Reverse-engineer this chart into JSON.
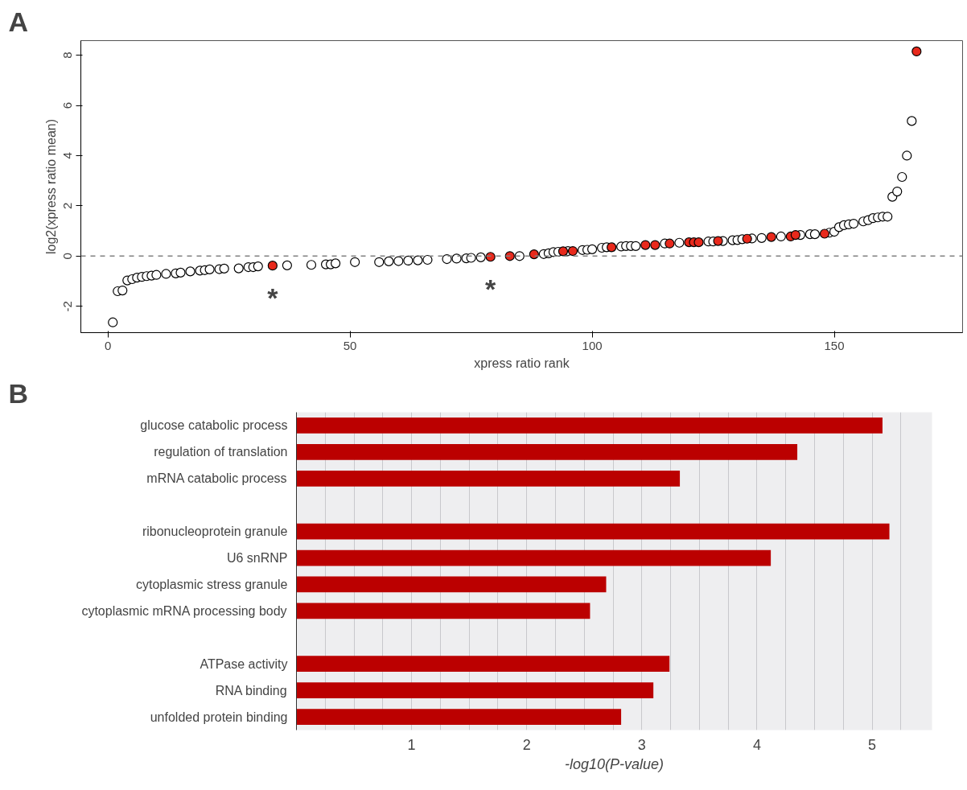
{
  "chart_data": [
    {
      "type": "scatter",
      "title": "A",
      "xlabel": "xpress ratio rank",
      "ylabel": "log2(xpress ratio mean)",
      "xlim": [
        -5.6,
        176.5
      ],
      "ylim": [
        -3.05,
        8.58
      ],
      "xticks": [
        0,
        50,
        100,
        150
      ],
      "yticks": [
        -2,
        0,
        2,
        4,
        6,
        8
      ],
      "grid": false,
      "marker": "circle",
      "series": [
        {
          "color": "#ffffff",
          "x": [
            1,
            2,
            3,
            4,
            5,
            6,
            7,
            8,
            9,
            10,
            12,
            14,
            15,
            17,
            19,
            20,
            21,
            23,
            24,
            27,
            29,
            30,
            31,
            37,
            42,
            45,
            46,
            47,
            51,
            56,
            58,
            60,
            62,
            64,
            66,
            70,
            72,
            74,
            75,
            77,
            85,
            90,
            91,
            92,
            93,
            95,
            98,
            99,
            100,
            102,
            103,
            106,
            107,
            108,
            109,
            115,
            118,
            124,
            125,
            127,
            129,
            130,
            131,
            133,
            135,
            139,
            143,
            145,
            146,
            149,
            150,
            151,
            152,
            153,
            154,
            156,
            157,
            158,
            159,
            160,
            161,
            162,
            163,
            164,
            165,
            166
          ],
          "values": [
            -2.64,
            -1.4,
            -1.37,
            -0.97,
            -0.92,
            -0.86,
            -0.83,
            -0.8,
            -0.78,
            -0.75,
            -0.71,
            -0.69,
            -0.66,
            -0.61,
            -0.58,
            -0.56,
            -0.53,
            -0.52,
            -0.5,
            -0.49,
            -0.44,
            -0.44,
            -0.41,
            -0.37,
            -0.35,
            -0.33,
            -0.33,
            -0.29,
            -0.24,
            -0.24,
            -0.21,
            -0.2,
            -0.18,
            -0.17,
            -0.15,
            -0.12,
            -0.1,
            -0.09,
            -0.07,
            -0.05,
            0.0,
            0.08,
            0.11,
            0.16,
            0.17,
            0.2,
            0.24,
            0.25,
            0.27,
            0.33,
            0.35,
            0.38,
            0.4,
            0.4,
            0.4,
            0.5,
            0.53,
            0.58,
            0.58,
            0.6,
            0.63,
            0.64,
            0.67,
            0.7,
            0.72,
            0.78,
            0.84,
            0.87,
            0.87,
            0.93,
            0.97,
            1.15,
            1.23,
            1.26,
            1.29,
            1.38,
            1.43,
            1.51,
            1.54,
            1.57,
            1.57,
            2.36,
            2.57,
            3.15,
            4.0,
            5.38
          ]
        },
        {
          "color": "#e8291c",
          "x": [
            34,
            79,
            83,
            88,
            94,
            96,
            104,
            111,
            113,
            116,
            120,
            121,
            122,
            126,
            132,
            137,
            141,
            142,
            148,
            167
          ],
          "values": [
            -0.38,
            -0.03,
            0.0,
            0.07,
            0.19,
            0.2,
            0.35,
            0.44,
            0.44,
            0.5,
            0.55,
            0.55,
            0.55,
            0.6,
            0.69,
            0.76,
            0.78,
            0.84,
            0.89,
            8.15
          ]
        }
      ],
      "ref_lines": [
        {
          "axis": "y",
          "value": 0,
          "color": "#808080",
          "line_style": "dashed"
        }
      ],
      "annotations": [
        "*",
        "*"
      ]
    },
    {
      "type": "bar",
      "title": "B",
      "orientation": "horizontal",
      "xlabel": "-log10(P-value)",
      "categories": [
        "glucose catabolic process",
        "regulation of translation",
        "mRNA catabolic process",
        null,
        "ribonucleoprotein granule",
        "U6 snRNP",
        "cytoplasmic stress granule",
        "cytoplasmic mRNA processing body",
        null,
        "ATPase activity",
        "RNA binding",
        "unfolded protein binding"
      ],
      "values": [
        5.09,
        4.35,
        3.33,
        null,
        5.15,
        4.12,
        2.69,
        2.55,
        null,
        3.24,
        3.1,
        2.82
      ],
      "color": "#bb0000",
      "xlim": [
        0,
        5.52
      ],
      "xticks": [
        {
          "value": 0.25,
          "label": null
        },
        {
          "value": 0.5,
          "label": null
        },
        {
          "value": 0.75,
          "label": null
        },
        1,
        {
          "value": 1.25,
          "label": null
        },
        {
          "value": 1.5,
          "label": null
        },
        {
          "value": 1.75,
          "label": null
        },
        2,
        {
          "value": 2.25,
          "label": null
        },
        {
          "value": 2.5,
          "label": null
        },
        {
          "value": 2.75,
          "label": null
        },
        3,
        {
          "value": 3.25,
          "label": null
        },
        {
          "value": 3.5,
          "label": null
        },
        {
          "value": 3.75,
          "label": null
        },
        4,
        {
          "value": 4.25,
          "label": null
        },
        {
          "value": 4.5,
          "label": null
        },
        {
          "value": 4.75,
          "label": null
        },
        5,
        {
          "value": 5.25,
          "label": null
        }
      ],
      "grid": "x"
    }
  ]
}
